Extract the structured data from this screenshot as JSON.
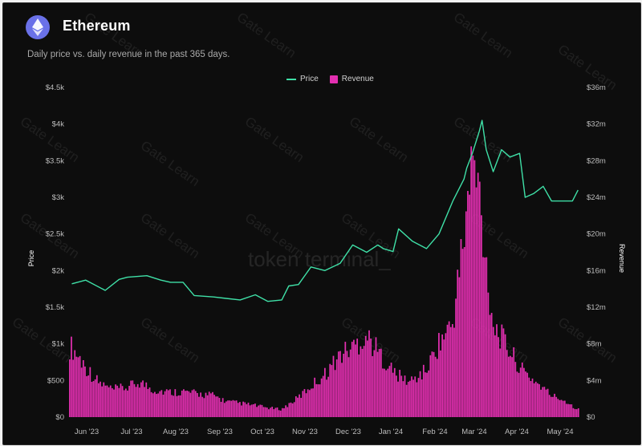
{
  "header": {
    "title": "Ethereum",
    "subtitle": "Daily price vs. daily revenue in the past 365 days.",
    "logo_icon": "ethereum-diamond-icon",
    "logo_color": "#6a71e8"
  },
  "watermarks": {
    "brand": "token terminal_",
    "repeat": "Gate Learn"
  },
  "colors": {
    "background": "#0d0d0d",
    "price_line": "#3fe0a7",
    "revenue_bars": "#e22fb0"
  },
  "chart_data": {
    "type": "bar",
    "series": [
      {
        "name": "Price",
        "mark": "line",
        "axis": "left",
        "x": [
          "2023-05-22",
          "2023-06-01",
          "2023-06-15",
          "2023-06-25",
          "2023-07-01",
          "2023-07-15",
          "2023-07-25",
          "2023-08-01",
          "2023-08-10",
          "2023-08-18",
          "2023-08-25",
          "2023-09-01",
          "2023-09-10",
          "2023-09-20",
          "2023-10-01",
          "2023-10-10",
          "2023-10-20",
          "2023-10-25",
          "2023-11-01",
          "2023-11-10",
          "2023-11-20",
          "2023-12-01",
          "2023-12-10",
          "2023-12-20",
          "2023-12-28",
          "2024-01-01",
          "2024-01-08",
          "2024-01-12",
          "2024-01-22",
          "2024-02-01",
          "2024-02-10",
          "2024-02-20",
          "2024-02-28",
          "2024-03-01",
          "2024-03-05",
          "2024-03-10",
          "2024-03-12",
          "2024-03-15",
          "2024-03-20",
          "2024-03-26",
          "2024-04-01",
          "2024-04-08",
          "2024-04-12",
          "2024-04-18",
          "2024-04-25",
          "2024-05-01",
          "2024-05-10",
          "2024-05-16",
          "2024-05-20"
        ],
        "values": [
          1820,
          1870,
          1730,
          1880,
          1910,
          1930,
          1870,
          1840,
          1840,
          1660,
          1650,
          1640,
          1620,
          1600,
          1670,
          1580,
          1600,
          1790,
          1810,
          2050,
          2000,
          2100,
          2350,
          2250,
          2350,
          2300,
          2260,
          2570,
          2400,
          2300,
          2500,
          2950,
          3250,
          3400,
          3600,
          3900,
          4050,
          3650,
          3350,
          3650,
          3550,
          3600,
          3000,
          3050,
          3150,
          2950,
          2950,
          2950,
          3100
        ]
      },
      {
        "name": "Revenue",
        "mark": "bar",
        "axis": "right",
        "x": [
          "2023-05-22",
          "2023-06-01",
          "2023-06-10",
          "2023-06-20",
          "2023-07-01",
          "2023-07-10",
          "2023-07-20",
          "2023-08-01",
          "2023-08-10",
          "2023-08-20",
          "2023-09-01",
          "2023-09-10",
          "2023-09-20",
          "2023-10-01",
          "2023-10-10",
          "2023-10-20",
          "2023-11-01",
          "2023-11-10",
          "2023-11-20",
          "2023-12-01",
          "2023-12-10",
          "2023-12-20",
          "2024-01-01",
          "2024-01-10",
          "2024-01-20",
          "2024-02-01",
          "2024-02-10",
          "2024-02-20",
          "2024-03-01",
          "2024-03-05",
          "2024-03-10",
          "2024-03-15",
          "2024-03-20",
          "2024-04-01",
          "2024-04-10",
          "2024-04-20",
          "2024-05-01",
          "2024-05-10",
          "2024-05-20"
        ],
        "values": [
          9.0,
          6.5,
          4.5,
          3.5,
          3.8,
          4.5,
          3.5,
          3.2,
          3.3,
          3.0,
          2.8,
          2.0,
          1.8,
          1.5,
          1.2,
          1.0,
          2.5,
          4.0,
          5.5,
          8.0,
          9.0,
          10.5,
          7.5,
          5.5,
          4.5,
          6.0,
          9.5,
          12.0,
          26.0,
          33.0,
          29.0,
          20.0,
          12.0,
          8.5,
          6.0,
          4.5,
          2.8,
          2.2,
          1.0
        ]
      }
    ],
    "x_tick_labels": [
      "Jun '23",
      "Jul '23",
      "Aug '23",
      "Sep '23",
      "Oct '23",
      "Nov '23",
      "Dec '23",
      "Jan '24",
      "Feb '24",
      "Mar '24",
      "Apr '24",
      "May '24"
    ],
    "y_left": {
      "label": "Price",
      "range": [
        0,
        4500
      ],
      "ticks": [
        0,
        500,
        1000,
        1500,
        2000,
        2500,
        3000,
        3500,
        4000,
        4500
      ],
      "tick_labels": [
        "$0",
        "$500",
        "$1k",
        "$1.5k",
        "$2k",
        "$2.5k",
        "$3k",
        "$3.5k",
        "$4k",
        "$4.5k"
      ]
    },
    "y_right": {
      "label": "Revenue",
      "range": [
        0,
        36
      ],
      "unit": "m",
      "ticks": [
        0,
        4,
        8,
        12,
        16,
        20,
        24,
        28,
        32,
        36
      ],
      "tick_labels": [
        "$0",
        "$4m",
        "$8m",
        "$12m",
        "$16m",
        "$20m",
        "$24m",
        "$28m",
        "$32m",
        "$36m"
      ]
    },
    "x_range": [
      "2023-05-20",
      "2024-05-21"
    ],
    "legend": {
      "position": "top-center",
      "entries": [
        "Price",
        "Revenue"
      ]
    },
    "grid": false
  }
}
